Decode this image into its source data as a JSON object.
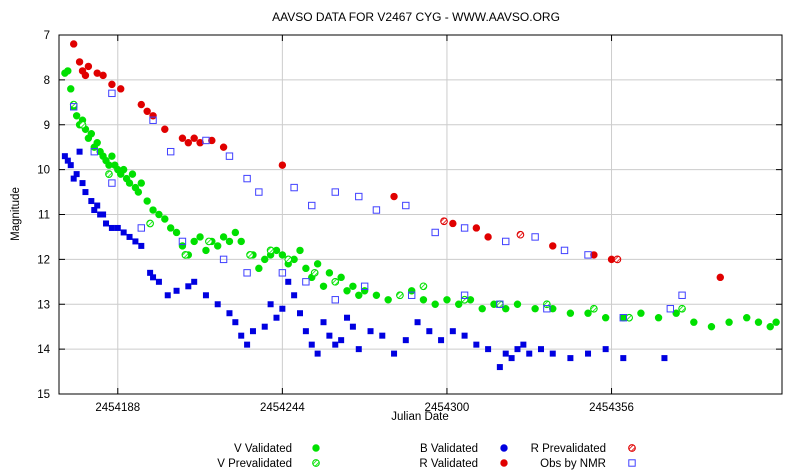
{
  "chart_data": {
    "type": "scatter",
    "title": "AAVSO DATA FOR V2467 CYG - WWW.AAVSO.ORG",
    "xlabel": "Julian Date",
    "ylabel": "Magnitude",
    "xlim": [
      2454168,
      2454414
    ],
    "ylim": [
      7,
      15
    ],
    "y_inverted": true,
    "grid": true,
    "x_ticks": [
      2454188,
      2454244,
      2454300,
      2454356
    ],
    "y_ticks": [
      7,
      8,
      9,
      10,
      11,
      12,
      13,
      14,
      15
    ],
    "legend": [
      {
        "key": "v_validated",
        "label": "V Validated",
        "color": "#00e000",
        "marker": "filled-circle"
      },
      {
        "key": "v_prevalidated",
        "label": "V Prevalidated",
        "color": "#00e000",
        "marker": "hatched-circle"
      },
      {
        "key": "b_validated",
        "label": "B Validated",
        "color": "#0000e0",
        "marker": "filled-circle"
      },
      {
        "key": "r_validated",
        "label": "R Validated",
        "color": "#e00000",
        "marker": "filled-circle"
      },
      {
        "key": "r_prevalidated",
        "label": "R Prevalidated",
        "color": "#e00000",
        "marker": "hatched-circle"
      },
      {
        "key": "obs_by_nmr",
        "label": "Obs by NMR",
        "color": "#4040ff",
        "marker": "open-square"
      }
    ],
    "series": [
      {
        "name": "V Validated",
        "color": "#00e000",
        "marker": "circle",
        "points": [
          [
            2454170,
            7.85
          ],
          [
            2454171,
            7.8
          ],
          [
            2454172,
            8.2
          ],
          [
            2454173,
            8.6
          ],
          [
            2454174,
            8.8
          ],
          [
            2454175,
            9.0
          ],
          [
            2454176,
            8.9
          ],
          [
            2454177,
            9.1
          ],
          [
            2454178,
            9.3
          ],
          [
            2454179,
            9.2
          ],
          [
            2454180,
            9.5
          ],
          [
            2454181,
            9.4
          ],
          [
            2454182,
            9.6
          ],
          [
            2454183,
            9.7
          ],
          [
            2454184,
            9.8
          ],
          [
            2454185,
            9.9
          ],
          [
            2454186,
            9.7
          ],
          [
            2454187,
            9.9
          ],
          [
            2454188,
            10.0
          ],
          [
            2454189,
            10.1
          ],
          [
            2454190,
            10.0
          ],
          [
            2454191,
            10.2
          ],
          [
            2454192,
            10.3
          ],
          [
            2454193,
            10.1
          ],
          [
            2454194,
            10.4
          ],
          [
            2454195,
            10.5
          ],
          [
            2454196,
            10.3
          ],
          [
            2454198,
            10.7
          ],
          [
            2454200,
            10.9
          ],
          [
            2454202,
            11.0
          ],
          [
            2454204,
            11.1
          ],
          [
            2454206,
            11.3
          ],
          [
            2454208,
            11.4
          ],
          [
            2454210,
            11.7
          ],
          [
            2454212,
            11.9
          ],
          [
            2454214,
            11.6
          ],
          [
            2454216,
            11.5
          ],
          [
            2454218,
            11.8
          ],
          [
            2454220,
            11.6
          ],
          [
            2454222,
            11.7
          ],
          [
            2454224,
            11.5
          ],
          [
            2454226,
            11.6
          ],
          [
            2454228,
            11.4
          ],
          [
            2454230,
            11.6
          ],
          [
            2454234,
            11.9
          ],
          [
            2454236,
            12.2
          ],
          [
            2454238,
            12.0
          ],
          [
            2454240,
            11.9
          ],
          [
            2454242,
            11.8
          ],
          [
            2454244,
            11.9
          ],
          [
            2454246,
            12.1
          ],
          [
            2454248,
            12.0
          ],
          [
            2454250,
            11.8
          ],
          [
            2454252,
            12.2
          ],
          [
            2454254,
            12.4
          ],
          [
            2454256,
            12.1
          ],
          [
            2454258,
            12.6
          ],
          [
            2454260,
            12.3
          ],
          [
            2454262,
            12.5
          ],
          [
            2454264,
            12.4
          ],
          [
            2454266,
            12.7
          ],
          [
            2454268,
            12.6
          ],
          [
            2454270,
            12.8
          ],
          [
            2454272,
            12.7
          ],
          [
            2454276,
            12.8
          ],
          [
            2454280,
            12.9
          ],
          [
            2454284,
            12.8
          ],
          [
            2454288,
            12.7
          ],
          [
            2454292,
            12.9
          ],
          [
            2454296,
            13.0
          ],
          [
            2454300,
            12.9
          ],
          [
            2454304,
            13.0
          ],
          [
            2454308,
            12.9
          ],
          [
            2454312,
            13.1
          ],
          [
            2454316,
            13.0
          ],
          [
            2454320,
            13.1
          ],
          [
            2454324,
            13.0
          ],
          [
            2454330,
            13.1
          ],
          [
            2454336,
            13.1
          ],
          [
            2454342,
            13.2
          ],
          [
            2454348,
            13.2
          ],
          [
            2454354,
            13.3
          ],
          [
            2454360,
            13.3
          ],
          [
            2454366,
            13.2
          ],
          [
            2454372,
            13.3
          ],
          [
            2454378,
            13.2
          ],
          [
            2454384,
            13.4
          ],
          [
            2454390,
            13.5
          ],
          [
            2454396,
            13.4
          ],
          [
            2454402,
            13.3
          ],
          [
            2454406,
            13.4
          ],
          [
            2454410,
            13.5
          ],
          [
            2454412,
            13.4
          ]
        ]
      },
      {
        "name": "V Prevalidated",
        "color": "#00e000",
        "marker": "hatched-circle",
        "points": [
          [
            2454173,
            8.55
          ],
          [
            2454176,
            9.0
          ],
          [
            2454185,
            10.1
          ],
          [
            2454199,
            11.2
          ],
          [
            2454211,
            11.9
          ],
          [
            2454219,
            11.6
          ],
          [
            2454233,
            11.9
          ],
          [
            2454240,
            11.8
          ],
          [
            2454246,
            12.0
          ],
          [
            2454255,
            12.3
          ],
          [
            2454262,
            12.5
          ],
          [
            2454284,
            12.8
          ],
          [
            2454292,
            12.6
          ],
          [
            2454306,
            12.9
          ],
          [
            2454318,
            13.0
          ],
          [
            2454334,
            13.0
          ],
          [
            2454350,
            13.1
          ],
          [
            2454362,
            13.3
          ],
          [
            2454380,
            13.1
          ]
        ]
      },
      {
        "name": "B Validated",
        "color": "#0000e0",
        "marker": "square",
        "points": [
          [
            2454170,
            9.7
          ],
          [
            2454171,
            9.8
          ],
          [
            2454172,
            9.9
          ],
          [
            2454173,
            10.2
          ],
          [
            2454174,
            10.1
          ],
          [
            2454175,
            9.6
          ],
          [
            2454176,
            10.3
          ],
          [
            2454177,
            10.5
          ],
          [
            2454179,
            10.7
          ],
          [
            2454180,
            10.9
          ],
          [
            2454181,
            10.8
          ],
          [
            2454182,
            11.0
          ],
          [
            2454183,
            11.0
          ],
          [
            2454184,
            11.2
          ],
          [
            2454186,
            11.3
          ],
          [
            2454188,
            11.3
          ],
          [
            2454190,
            11.4
          ],
          [
            2454192,
            11.5
          ],
          [
            2454194,
            11.6
          ],
          [
            2454196,
            11.7
          ],
          [
            2454199,
            12.3
          ],
          [
            2454200,
            12.4
          ],
          [
            2454202,
            12.5
          ],
          [
            2454205,
            12.8
          ],
          [
            2454208,
            12.7
          ],
          [
            2454212,
            12.6
          ],
          [
            2454214,
            12.5
          ],
          [
            2454218,
            12.8
          ],
          [
            2454222,
            13.0
          ],
          [
            2454226,
            13.2
          ],
          [
            2454228,
            13.4
          ],
          [
            2454230,
            13.7
          ],
          [
            2454232,
            13.9
          ],
          [
            2454234,
            13.6
          ],
          [
            2454238,
            13.5
          ],
          [
            2454240,
            13.0
          ],
          [
            2454242,
            13.3
          ],
          [
            2454244,
            13.1
          ],
          [
            2454246,
            12.5
          ],
          [
            2454248,
            12.8
          ],
          [
            2454250,
            13.2
          ],
          [
            2454252,
            13.6
          ],
          [
            2454254,
            13.9
          ],
          [
            2454256,
            14.1
          ],
          [
            2454258,
            13.4
          ],
          [
            2454260,
            13.7
          ],
          [
            2454262,
            13.9
          ],
          [
            2454264,
            13.8
          ],
          [
            2454266,
            13.3
          ],
          [
            2454268,
            13.5
          ],
          [
            2454270,
            14.0
          ],
          [
            2454274,
            13.6
          ],
          [
            2454278,
            13.7
          ],
          [
            2454282,
            14.1
          ],
          [
            2454286,
            13.8
          ],
          [
            2454290,
            13.4
          ],
          [
            2454294,
            13.6
          ],
          [
            2454298,
            13.8
          ],
          [
            2454302,
            13.6
          ],
          [
            2454306,
            13.7
          ],
          [
            2454310,
            13.9
          ],
          [
            2454314,
            14.0
          ],
          [
            2454318,
            14.4
          ],
          [
            2454320,
            14.1
          ],
          [
            2454322,
            14.2
          ],
          [
            2454324,
            14.0
          ],
          [
            2454326,
            13.9
          ],
          [
            2454328,
            14.1
          ],
          [
            2454332,
            14.0
          ],
          [
            2454336,
            14.1
          ],
          [
            2454342,
            14.2
          ],
          [
            2454348,
            14.1
          ],
          [
            2454354,
            14.0
          ],
          [
            2454360,
            14.2
          ],
          [
            2454374,
            14.2
          ]
        ]
      },
      {
        "name": "R Validated",
        "color": "#e00000",
        "marker": "circle",
        "points": [
          [
            2454173,
            7.2
          ],
          [
            2454175,
            7.6
          ],
          [
            2454176,
            7.8
          ],
          [
            2454177,
            7.9
          ],
          [
            2454178,
            7.7
          ],
          [
            2454181,
            7.85
          ],
          [
            2454183,
            7.9
          ],
          [
            2454186,
            8.1
          ],
          [
            2454189,
            8.2
          ],
          [
            2454196,
            8.55
          ],
          [
            2454198,
            8.7
          ],
          [
            2454200,
            8.8
          ],
          [
            2454204,
            9.1
          ],
          [
            2454210,
            9.3
          ],
          [
            2454212,
            9.4
          ],
          [
            2454214,
            9.3
          ],
          [
            2454216,
            9.4
          ],
          [
            2454220,
            9.35
          ],
          [
            2454224,
            9.5
          ],
          [
            2454244,
            9.9
          ],
          [
            2454282,
            10.6
          ],
          [
            2454302,
            11.2
          ],
          [
            2454310,
            11.3
          ],
          [
            2454314,
            11.5
          ],
          [
            2454336,
            11.7
          ],
          [
            2454350,
            11.9
          ],
          [
            2454356,
            12.0
          ],
          [
            2454393,
            12.4
          ]
        ]
      },
      {
        "name": "R Prevalidated",
        "color": "#e00000",
        "marker": "hatched-circle",
        "points": [
          [
            2454299,
            11.15
          ],
          [
            2454325,
            11.45
          ],
          [
            2454358,
            12.0
          ]
        ]
      },
      {
        "name": "Obs by NMR",
        "color": "#4040ff",
        "marker": "open-square",
        "points": [
          [
            2454173,
            8.6
          ],
          [
            2454180,
            9.6
          ],
          [
            2454186,
            10.3
          ],
          [
            2454196,
            11.3
          ],
          [
            2454210,
            11.6
          ],
          [
            2454224,
            12.0
          ],
          [
            2454232,
            12.3
          ],
          [
            2454244,
            12.3
          ],
          [
            2454252,
            12.5
          ],
          [
            2454262,
            12.9
          ],
          [
            2454272,
            12.6
          ],
          [
            2454288,
            12.8
          ],
          [
            2454306,
            12.8
          ],
          [
            2454318,
            13.0
          ],
          [
            2454334,
            13.1
          ],
          [
            2454360,
            13.3
          ],
          [
            2454376,
            13.1
          ],
          [
            2454380,
            12.8
          ],
          [
            2454186,
            8.3
          ],
          [
            2454200,
            8.9
          ],
          [
            2454206,
            9.6
          ],
          [
            2454218,
            9.35
          ],
          [
            2454226,
            9.7
          ],
          [
            2454232,
            10.2
          ],
          [
            2454236,
            10.5
          ],
          [
            2454248,
            10.4
          ],
          [
            2454254,
            10.8
          ],
          [
            2454262,
            10.5
          ],
          [
            2454270,
            10.6
          ],
          [
            2454276,
            10.9
          ],
          [
            2454286,
            10.8
          ],
          [
            2454296,
            11.4
          ],
          [
            2454306,
            11.3
          ],
          [
            2454320,
            11.6
          ],
          [
            2454330,
            11.5
          ],
          [
            2454340,
            11.8
          ],
          [
            2454348,
            11.9
          ]
        ]
      }
    ]
  }
}
